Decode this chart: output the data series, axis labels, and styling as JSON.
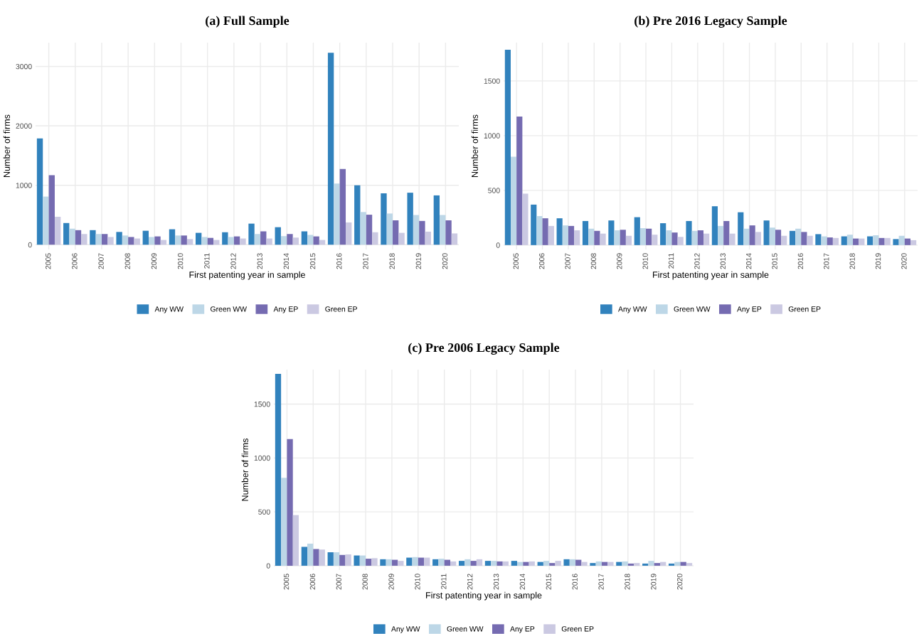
{
  "chart_data": [
    {
      "type": "bar",
      "title": "(a) Full Sample",
      "xlabel": "First patenting year in sample",
      "ylabel": "Number of firms",
      "categories": [
        "2005",
        "2006",
        "2007",
        "2008",
        "2009",
        "2010",
        "2011",
        "2012",
        "2013",
        "2014",
        "2015",
        "2016",
        "2017",
        "2018",
        "2019",
        "2020"
      ],
      "ylim": [
        -80,
        3400
      ],
      "yticks": [
        0,
        1000,
        2000,
        3000
      ],
      "grid": true,
      "legend": "bottom",
      "series": [
        {
          "name": "Any WW",
          "color": "#3182bd",
          "values": [
            1790,
            365,
            245,
            215,
            235,
            260,
            200,
            210,
            355,
            295,
            225,
            3230,
            1000,
            865,
            875,
            830
          ]
        },
        {
          "name": "Green WW",
          "color": "#bdd7e7",
          "values": [
            810,
            270,
            180,
            155,
            130,
            155,
            130,
            130,
            180,
            145,
            165,
            1030,
            550,
            525,
            500,
            500
          ]
        },
        {
          "name": "Any EP",
          "color": "#756bb1",
          "values": [
            1170,
            245,
            180,
            130,
            140,
            155,
            115,
            140,
            225,
            180,
            140,
            1275,
            505,
            410,
            400,
            410
          ]
        },
        {
          "name": "Green EP",
          "color": "#cbc9e2",
          "values": [
            470,
            180,
            130,
            105,
            80,
            95,
            80,
            105,
            105,
            120,
            80,
            375,
            210,
            200,
            220,
            190
          ]
        }
      ]
    },
    {
      "type": "bar",
      "title": "(b) Pre 2016 Legacy Sample",
      "xlabel": "First patenting year in sample",
      "ylabel": "Number of firms",
      "categories": [
        "2005",
        "2006",
        "2007",
        "2008",
        "2009",
        "2010",
        "2011",
        "2012",
        "2013",
        "2014",
        "2015",
        "2016",
        "2017",
        "2018",
        "2019",
        "2020"
      ],
      "ylim": [
        -40,
        1850
      ],
      "yticks": [
        0,
        500,
        1000,
        1500
      ],
      "grid": true,
      "legend": "bottom",
      "series": [
        {
          "name": "Any WW",
          "color": "#3182bd",
          "values": [
            1785,
            370,
            245,
            220,
            225,
            255,
            200,
            220,
            355,
            300,
            225,
            130,
            100,
            80,
            80,
            55
          ]
        },
        {
          "name": "Green WW",
          "color": "#bdd7e7",
          "values": [
            807,
            265,
            180,
            150,
            135,
            155,
            135,
            130,
            175,
            150,
            160,
            150,
            80,
            95,
            90,
            85
          ]
        },
        {
          "name": "Any EP",
          "color": "#756bb1",
          "values": [
            1175,
            245,
            175,
            130,
            140,
            150,
            115,
            135,
            220,
            180,
            140,
            120,
            70,
            60,
            65,
            60
          ]
        },
        {
          "name": "Green EP",
          "color": "#cbc9e2",
          "values": [
            470,
            175,
            135,
            105,
            85,
            95,
            75,
            105,
            105,
            120,
            85,
            85,
            65,
            60,
            65,
            45
          ]
        }
      ]
    },
    {
      "type": "bar",
      "title": "(c) Pre 2006 Legacy Sample",
      "xlabel": "First patenting year in sample",
      "ylabel": "Number of firms",
      "categories": [
        "2005",
        "2006",
        "2007",
        "2008",
        "2009",
        "2010",
        "2011",
        "2012",
        "2013",
        "2014",
        "2015",
        "2016",
        "2017",
        "2018",
        "2019",
        "2020"
      ],
      "ylim": [
        -40,
        1820
      ],
      "yticks": [
        0,
        500,
        1000,
        1500
      ],
      "grid": true,
      "legend": "bottom",
      "series": [
        {
          "name": "Any WW",
          "color": "#3182bd",
          "values": [
            1780,
            175,
            125,
            95,
            60,
            75,
            60,
            45,
            45,
            45,
            35,
            60,
            25,
            35,
            20,
            20
          ]
        },
        {
          "name": "Green WW",
          "color": "#bdd7e7",
          "values": [
            815,
            205,
            125,
            95,
            60,
            80,
            65,
            60,
            45,
            35,
            45,
            60,
            40,
            40,
            45,
            35
          ]
        },
        {
          "name": "Any EP",
          "color": "#756bb1",
          "values": [
            1175,
            155,
            100,
            65,
            55,
            75,
            55,
            45,
            40,
            35,
            25,
            55,
            35,
            20,
            25,
            35
          ]
        },
        {
          "name": "Green EP",
          "color": "#cbc9e2",
          "values": [
            470,
            150,
            105,
            70,
            45,
            75,
            40,
            60,
            40,
            40,
            45,
            35,
            35,
            25,
            35,
            25
          ]
        }
      ]
    }
  ]
}
